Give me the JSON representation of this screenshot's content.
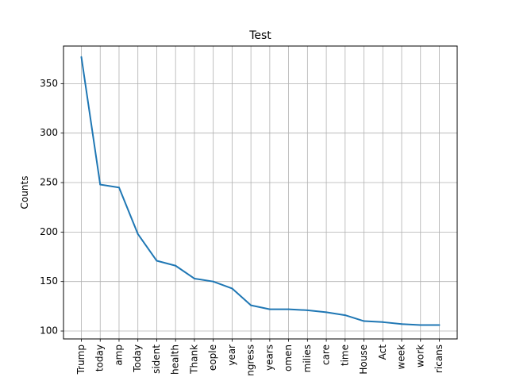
{
  "chart_data": {
    "type": "line",
    "title": "Test",
    "xlabel": "",
    "ylabel": "Counts",
    "grid": true,
    "legend": "none",
    "ylim": [
      92,
      388
    ],
    "yticks": [
      100,
      150,
      200,
      250,
      300,
      350
    ],
    "categories": [
      "Trump",
      "today",
      "amp",
      "Today",
      "sident",
      "health",
      "Thank",
      "eople",
      "year",
      "ngress",
      "years",
      "omen",
      "milies",
      "care",
      "time",
      "House",
      "Act",
      "week",
      "work",
      "ricans"
    ],
    "series": [
      {
        "values": [
          377,
          248,
          245,
          198,
          171,
          166,
          153,
          150,
          143,
          126,
          122,
          122,
          121,
          119,
          116,
          110,
          109,
          107,
          106,
          106
        ],
        "color": "#1f77b4"
      }
    ]
  }
}
